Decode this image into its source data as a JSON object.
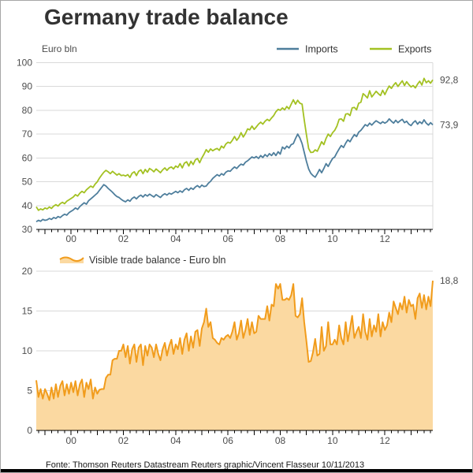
{
  "title": "Germany trade balance",
  "footer": "Fonte: Thomson Reuters Datastream Reuters graphic/Vincent Flasseur 10/11/2013",
  "colors": {
    "imports_line": "#4e7e9c",
    "exports_line": "#a3c122",
    "balance_line": "#f19c1c",
    "balance_fill": "#fbd9a1",
    "grid": "#d9d9d9",
    "axis": "#000000",
    "axis_label": "#4d4d4d",
    "legend_text": "#333333",
    "title_text": "#333333"
  },
  "chart_data": [
    {
      "type": "line",
      "unit_label": "Euro bln",
      "x_start": 1998.667,
      "x_step_years": 0.0833333,
      "x_ticks": [
        {
          "t": 2000,
          "label": "00"
        },
        {
          "t": 2002,
          "label": "02"
        },
        {
          "t": 2004,
          "label": "04"
        },
        {
          "t": 2006,
          "label": "06"
        },
        {
          "t": 2008,
          "label": "08"
        },
        {
          "t": 2010,
          "label": "10"
        },
        {
          "t": 2012,
          "label": "12"
        }
      ],
      "ylim": [
        30,
        100
      ],
      "yticks": [
        30,
        40,
        50,
        60,
        70,
        80,
        90,
        100
      ],
      "legend_position": "top-right",
      "series": [
        {
          "name": "Imports",
          "color": "#4e7e9c",
          "end_label": "73,9",
          "end_value": 73.9,
          "values": [
            33.2,
            33.8,
            33.4,
            34.2,
            33.8,
            34.0,
            34.6,
            34.2,
            35.0,
            34.6,
            35.4,
            35.0,
            35.8,
            36.4,
            36.0,
            37.0,
            37.6,
            38.2,
            39.0,
            38.4,
            39.6,
            40.4,
            41.2,
            40.6,
            42.0,
            42.8,
            43.6,
            44.4,
            45.2,
            46.4,
            47.6,
            48.8,
            48.2,
            47.2,
            46.4,
            45.6,
            44.6,
            43.8,
            43.4,
            42.6,
            42.0,
            41.6,
            42.4,
            41.8,
            43.0,
            43.6,
            42.8,
            43.8,
            44.4,
            43.6,
            44.6,
            44.0,
            44.8,
            44.2,
            43.6,
            44.6,
            44.0,
            43.4,
            44.4,
            45.0,
            44.4,
            45.2,
            44.8,
            45.4,
            46.0,
            45.4,
            46.2,
            45.6,
            46.6,
            47.2,
            46.4,
            47.4,
            46.8,
            47.8,
            48.4,
            47.6,
            48.6,
            48.0,
            48.2,
            49.4,
            50.2,
            51.4,
            52.2,
            53.0,
            52.4,
            53.4,
            52.8,
            54.0,
            54.6,
            54.4,
            55.4,
            56.2,
            55.6,
            56.6,
            57.4,
            57.0,
            58.2,
            58.8,
            59.6,
            60.4,
            60.0,
            60.6,
            59.8,
            61.0,
            60.2,
            61.4,
            60.6,
            61.8,
            61.0,
            62.2,
            61.0,
            62.6,
            61.6,
            64.6,
            63.8,
            65.0,
            64.2,
            65.6,
            66.0,
            68.2,
            70.0,
            68.4,
            66.0,
            62.4,
            58.6,
            55.4,
            53.6,
            52.6,
            51.9,
            53.4,
            55.2,
            53.8,
            55.6,
            57.6,
            56.4,
            58.2,
            59.8,
            60.4,
            62.2,
            63.8,
            65.2,
            64.4,
            66.2,
            67.6,
            66.8,
            68.4,
            69.8,
            69.0,
            70.8,
            71.6,
            72.8,
            74.0,
            73.4,
            74.6,
            73.8,
            74.8,
            75.6,
            75.0,
            74.4,
            75.2,
            74.6,
            75.2,
            76.4,
            75.4,
            74.6,
            75.8,
            74.8,
            75.6,
            76.2,
            74.8,
            75.4,
            74.2,
            73.6,
            74.8,
            75.6,
            74.2,
            75.2,
            74.4,
            76.0,
            74.6,
            73.8,
            74.8,
            73.9
          ]
        },
        {
          "name": "Exports",
          "color": "#a3c122",
          "end_label": "92,8",
          "end_value": 92.8,
          "values": [
            39.5,
            38.0,
            38.6,
            38.2,
            39.0,
            38.6,
            39.4,
            38.8,
            39.8,
            40.4,
            39.8,
            40.8,
            41.4,
            40.8,
            41.8,
            42.4,
            43.0,
            43.6,
            44.6,
            44.0,
            45.2,
            46.0,
            45.4,
            46.6,
            47.4,
            48.2,
            47.6,
            49.0,
            50.0,
            51.5,
            52.8,
            54.0,
            54.8,
            54.2,
            53.4,
            54.4,
            53.6,
            52.8,
            53.4,
            52.6,
            52.8,
            52.4,
            53.0,
            51.8,
            53.6,
            54.2,
            52.6,
            54.4,
            55.0,
            53.4,
            55.2,
            54.0,
            55.6,
            55.0,
            54.2,
            55.4,
            54.6,
            53.8,
            55.0,
            55.8,
            54.8,
            55.8,
            56.2,
            55.4,
            56.6,
            56.0,
            57.6,
            55.8,
            57.8,
            58.4,
            56.6,
            58.6,
            57.2,
            59.2,
            59.8,
            58.0,
            60.0,
            61.6,
            63.5,
            62.4,
            63.8,
            63.0,
            63.6,
            64.0,
            63.2,
            65.0,
            64.2,
            65.8,
            66.6,
            66.2,
            67.4,
            69.0,
            67.4,
            68.6,
            70.6,
            68.8,
            70.2,
            72.2,
            71.8,
            73.4,
            72.0,
            73.0,
            74.2,
            75.0,
            74.2,
            75.4,
            76.2,
            75.6,
            76.8,
            77.8,
            79.4,
            80.4,
            80.0,
            81.0,
            80.2,
            81.6,
            80.6,
            82.6,
            84.4,
            82.6,
            84.2,
            83.0,
            82.6,
            76.0,
            69.8,
            64.0,
            62.3,
            62.4,
            63.4,
            62.8,
            64.8,
            66.8,
            65.6,
            68.2,
            70.0,
            69.0,
            70.6,
            71.6,
            73.4,
            76.2,
            76.4,
            75.4,
            78.4,
            78.6,
            77.8,
            81.0,
            81.2,
            80.2,
            83.0,
            83.4,
            87.0,
            86.2,
            85.2,
            88.2,
            85.6,
            86.8,
            88.0,
            87.0,
            86.2,
            88.4,
            86.6,
            88.6,
            90.2,
            89.2,
            90.6,
            91.6,
            90.0,
            91.2,
            92.4,
            90.4,
            92.0,
            90.8,
            89.8,
            90.4,
            89.4,
            91.0,
            92.2,
            90.6,
            93.4,
            91.6,
            92.4,
            91.4,
            92.8
          ]
        }
      ]
    },
    {
      "type": "area",
      "x_start": 1998.667,
      "x_step_years": 0.0833333,
      "x_ticks": [
        {
          "t": 2000,
          "label": "00"
        },
        {
          "t": 2002,
          "label": "02"
        },
        {
          "t": 2004,
          "label": "04"
        },
        {
          "t": 2006,
          "label": "06"
        },
        {
          "t": 2008,
          "label": "08"
        },
        {
          "t": 2010,
          "label": "10"
        },
        {
          "t": 2012,
          "label": "12"
        }
      ],
      "ylim": [
        0,
        20
      ],
      "yticks": [
        0,
        5,
        10,
        15,
        20
      ],
      "series": [
        {
          "name": "Visible trade balance - Euro bln",
          "color": "#f19c1c",
          "fill": "#fbd9a1",
          "end_label": "18,8",
          "end_value": 18.8,
          "values": [
            6.3,
            4.2,
            5.2,
            4.0,
            5.2,
            4.6,
            3.8,
            5.4,
            4.0,
            5.8,
            4.2,
            5.6,
            6.2,
            4.4,
            5.8,
            4.6,
            6.0,
            4.8,
            6.2,
            4.4,
            5.8,
            6.4,
            4.2,
            6.0,
            5.2,
            6.4,
            4.0,
            5.4,
            4.6,
            5.1,
            5.2,
            5.2,
            6.6,
            7.0,
            7.0,
            8.8,
            9.0,
            9.0,
            10.0,
            10.0,
            10.8,
            9.2,
            10.6,
            8.4,
            10.2,
            10.8,
            8.6,
            10.4,
            10.8,
            8.2,
            10.6,
            9.4,
            10.8,
            10.4,
            9.2,
            10.8,
            9.6,
            8.8,
            10.2,
            11.0,
            9.4,
            10.6,
            11.4,
            9.6,
            10.8,
            10.2,
            11.6,
            9.6,
            11.4,
            12.2,
            10.0,
            11.8,
            10.4,
            12.4,
            12.6,
            10.6,
            12.8,
            13.6,
            15.3,
            13.0,
            13.6,
            11.6,
            11.4,
            11.0,
            10.8,
            11.6,
            11.4,
            11.8,
            12.0,
            11.6,
            12.4,
            13.6,
            11.4,
            12.2,
            13.8,
            11.6,
            12.6,
            14.0,
            12.0,
            13.6,
            12.2,
            12.4,
            14.4,
            14.0,
            14.0,
            14.0,
            15.6,
            13.8,
            15.8,
            15.6,
            18.4,
            17.8,
            18.4,
            16.4,
            16.4,
            16.6,
            16.4,
            17.0,
            18.4,
            14.4,
            14.2,
            14.6,
            16.6,
            13.6,
            11.2,
            8.6,
            8.7,
            9.8,
            11.5,
            9.4,
            9.6,
            13.0,
            10.0,
            10.6,
            13.6,
            10.8,
            10.8,
            11.4,
            10.8,
            13.2,
            11.6,
            10.8,
            13.6,
            11.2,
            12.8,
            14.4,
            11.6,
            12.4,
            13.0,
            11.6,
            14.6,
            12.4,
            11.4,
            14.0,
            11.8,
            13.2,
            12.4,
            14.6,
            11.8,
            13.6,
            12.6,
            13.2,
            14.8,
            13.6,
            16.2,
            15.4,
            14.6,
            16.0,
            15.2,
            16.8,
            14.8,
            16.4,
            15.6,
            15.8,
            14.0,
            16.6,
            17.2,
            15.4,
            17.0,
            15.2,
            16.8,
            15.6,
            18.8
          ]
        }
      ]
    }
  ]
}
